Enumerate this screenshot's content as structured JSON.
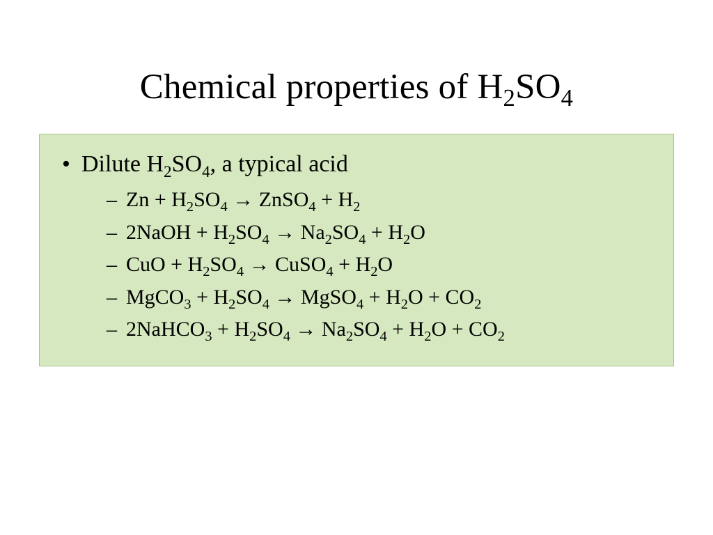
{
  "slide": {
    "background_color": "#ffffff",
    "title": {
      "prefix": "Chemical properties of H",
      "sub1": "2",
      "mid": "SO",
      "sub2": "4",
      "font_size_pt": 40,
      "color": "#000000"
    },
    "box": {
      "background_color": "#d6e8bf",
      "border_color": "#a8c48a",
      "heading": {
        "t0": "Dilute H",
        "s0": "2",
        "t1": "SO",
        "s1": "4",
        "t2": ", a typical acid",
        "font_size_pt": 26
      },
      "equations": [
        {
          "t0": "Zn + H",
          "s0": "2",
          "t1": "SO",
          "s1": "4",
          "t2": " ",
          "arrow": "→",
          "t3": " ZnSO",
          "s3": "4",
          "t4": " + H",
          "s4": "2",
          "t5": "",
          "s5": "",
          "t6": "",
          "s6": "",
          "t7": "",
          "s7": "",
          "t8": ""
        },
        {
          "t0": "2NaOH + H",
          "s0": "2",
          "t1": "SO",
          "s1": "4",
          "t2": " ",
          "arrow": "→",
          "t3": " Na",
          "s3": "2",
          "t4": "SO",
          "s4": "4",
          "t5": " + H",
          "s5": "2",
          "t6": "O",
          "s6": "",
          "t7": "",
          "s7": "",
          "t8": ""
        },
        {
          "t0": "CuO + H",
          "s0": "2",
          "t1": "SO",
          "s1": "4",
          "t2": " ",
          "arrow": "→",
          "t3": " CuSO",
          "s3": "4",
          "t4": " + H",
          "s4": "2",
          "t5": "O",
          "s5": "",
          "t6": "",
          "s6": "",
          "t7": "",
          "s7": "",
          "t8": ""
        },
        {
          "t0": "MgCO",
          "s0": "3",
          "t1": " + H",
          "s1": "2",
          "t2": "SO",
          "s2b": "4",
          "t2b": " ",
          "arrow": "→",
          "t3": " MgSO",
          "s3": "4",
          "t4": " + H",
          "s4": "2",
          "t5": "O + CO",
          "s5": "2",
          "t6": "",
          "s6": "",
          "t7": "",
          "s7": "",
          "t8": ""
        },
        {
          "t0": "2NaHCO",
          "s0": "3",
          "t1": " + H",
          "s1": "2",
          "t2": "SO",
          "s2b": "4",
          "t2b": " ",
          "arrow": "→",
          "t3": " Na",
          "s3": "2",
          "t4": "SO",
          "s4": "4",
          "t5": " + H",
          "s5": "2",
          "t6": "O + CO",
          "s6": "2",
          "t7": "",
          "s7": "",
          "t8": ""
        }
      ],
      "equation_font_size_pt": 23
    }
  }
}
